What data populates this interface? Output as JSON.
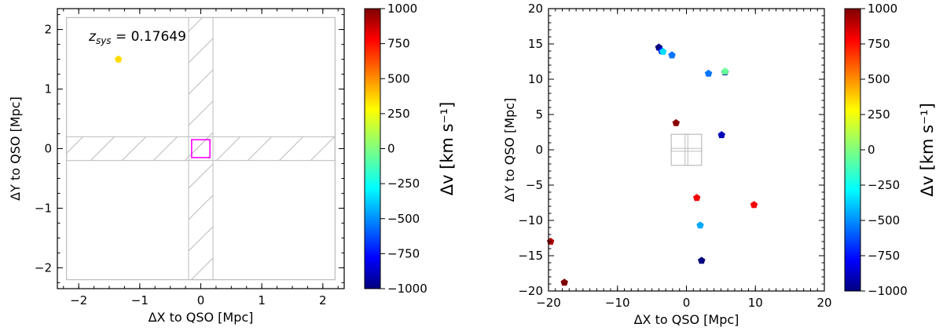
{
  "chart_data": [
    {
      "type": "scatter",
      "xlabel": "ΔX to QSO [Mpc]",
      "ylabel": "ΔY to QSO [Mpc]",
      "xlim": [
        -2.35,
        2.35
      ],
      "ylim": [
        -2.35,
        2.35
      ],
      "xticks": [
        "−2",
        "−1",
        "0",
        "1",
        "2"
      ],
      "yticks": [
        "−2",
        "−1",
        "0",
        "1",
        "2"
      ],
      "annotation": {
        "prefix": "z",
        "sub": "sys",
        "value": " = 0.17649"
      },
      "footprint": {
        "box_halfwidth": 2.2,
        "strip_halfwidth": 0.2,
        "hatched": true
      },
      "highlight_box": {
        "x": [
          -0.15,
          0.15
        ],
        "y": [
          -0.15,
          0.15
        ],
        "color": "#ff00ff"
      },
      "marker": "pentagon",
      "points": [
        {
          "x": -1.35,
          "y": 1.5,
          "dv": 350
        }
      ],
      "colorbar": {
        "label": "Δv [km s⁻¹]",
        "range": [
          -1000,
          1000
        ],
        "ticks": [
          "1000",
          "750",
          "500",
          "250",
          "0",
          "−250",
          "−500",
          "−750",
          "−1000"
        ],
        "colormap": "jet"
      }
    },
    {
      "type": "scatter",
      "xlabel": "ΔX to QSO [Mpc]",
      "ylabel": "ΔY to QSO [Mpc]",
      "xlim": [
        -20,
        20
      ],
      "ylim": [
        -20,
        20
      ],
      "xticks": [
        "−20",
        "−10",
        "0",
        "10",
        "20"
      ],
      "yticks": [
        "20",
        "15",
        "10",
        "5",
        "0",
        "−5",
        "−10",
        "−15",
        "−20"
      ],
      "marker": "pentagon",
      "points": [
        {
          "x": -4.0,
          "y": 14.5,
          "dv": -1000
        },
        {
          "x": -3.6,
          "y": 14.0,
          "dv": -750
        },
        {
          "x": -3.4,
          "y": 13.9,
          "dv": -350
        },
        {
          "x": -2.1,
          "y": 13.4,
          "dv": -550
        },
        {
          "x": 3.2,
          "y": 10.8,
          "dv": -550
        },
        {
          "x": 5.6,
          "y": 11.0,
          "dv": -950
        },
        {
          "x": 5.6,
          "y": 11.1,
          "dv": -50
        },
        {
          "x": -1.5,
          "y": 3.8,
          "dv": 980
        },
        {
          "x": 5.1,
          "y": 2.1,
          "dv": -900
        },
        {
          "x": 1.5,
          "y": -6.8,
          "dv": 800
        },
        {
          "x": 9.8,
          "y": -7.8,
          "dv": 800
        },
        {
          "x": 2.0,
          "y": -10.7,
          "dv": -450
        },
        {
          "x": -19.7,
          "y": -13.0,
          "dv": 920
        },
        {
          "x": 2.2,
          "y": -15.7,
          "dv": -1000
        },
        {
          "x": -17.7,
          "y": -18.8,
          "dv": 1000
        }
      ],
      "footprint": {
        "box_halfwidth": 2.2,
        "strip_halfwidth": 0.2
      },
      "colorbar": {
        "label": "Δv [km s⁻¹]",
        "range": [
          -1000,
          1000
        ],
        "ticks": [
          "1000",
          "750",
          "500",
          "250",
          "0",
          "−250",
          "−500",
          "−750",
          "−1000"
        ],
        "colormap": "jet"
      }
    }
  ]
}
